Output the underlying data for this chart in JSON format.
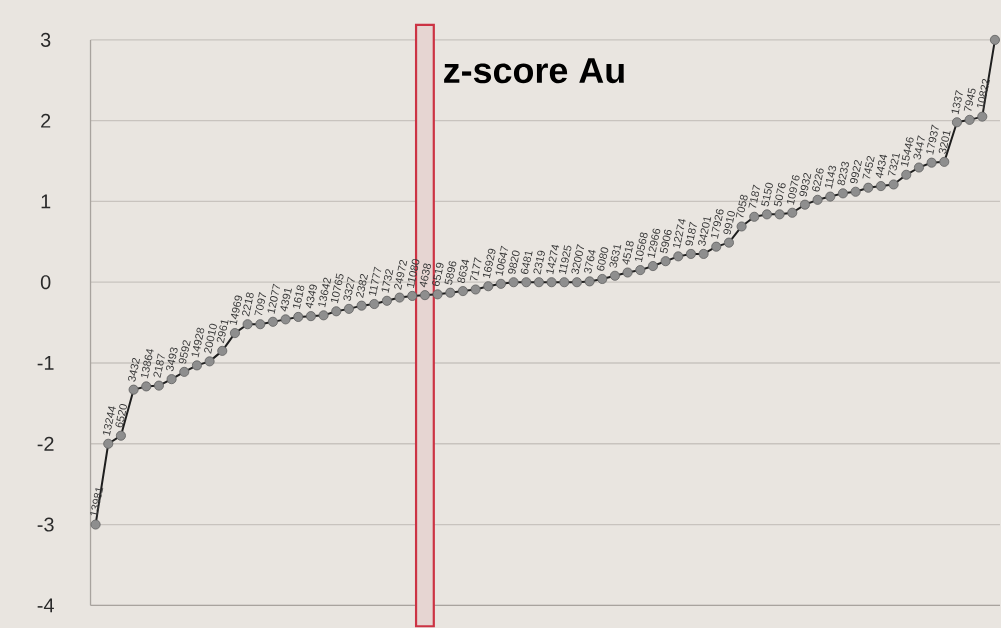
{
  "chart_data": {
    "type": "line",
    "title": "z-score Au",
    "categories": [
      "13981",
      "13244",
      "6520",
      "3432",
      "13864",
      "2187",
      "3493",
      "9592",
      "14928",
      "20010",
      "2961",
      "14969",
      "2218",
      "7097",
      "12077",
      "4391",
      "1618",
      "4349",
      "13642",
      "10765",
      "3327",
      "2382",
      "11777",
      "1732",
      "24972",
      "11080",
      "4638",
      "6519",
      "5896",
      "8634",
      "7177",
      "16929",
      "10647",
      "9820",
      "6481",
      "2319",
      "14274",
      "11925",
      "32007",
      "3764",
      "6080",
      "3631",
      "4518",
      "10568",
      "12966",
      "5906",
      "12274",
      "9187",
      "34201",
      "17926",
      "9910",
      "7058",
      "7187",
      "5150",
      "5076",
      "10976",
      "9932",
      "6226",
      "1143",
      "8233",
      "9922",
      "7452",
      "4434",
      "7321",
      "15446",
      "3447",
      "17937",
      "3201",
      "1337",
      "7945",
      "10822",
      null
    ],
    "values": [
      -3.0,
      -2.0,
      -1.9,
      -1.33,
      -1.29,
      -1.28,
      -1.2,
      -1.11,
      -1.03,
      -0.98,
      -0.85,
      -0.63,
      -0.52,
      -0.52,
      -0.49,
      -0.46,
      -0.43,
      -0.42,
      -0.41,
      -0.36,
      -0.33,
      -0.29,
      -0.27,
      -0.23,
      -0.19,
      -0.17,
      -0.16,
      -0.15,
      -0.13,
      -0.11,
      -0.09,
      -0.05,
      -0.02,
      0.0,
      0.0,
      0.0,
      0.0,
      0.0,
      0.0,
      0.01,
      0.04,
      0.08,
      0.12,
      0.15,
      0.2,
      0.26,
      0.32,
      0.35,
      0.35,
      0.44,
      0.49,
      0.69,
      0.81,
      0.84,
      0.84,
      0.86,
      0.96,
      1.02,
      1.06,
      1.1,
      1.12,
      1.17,
      1.19,
      1.21,
      1.33,
      1.42,
      1.48,
      1.49,
      1.98,
      2.01,
      2.05,
      3.0
    ],
    "color": "#1e1e1e",
    "marker": "circle",
    "line_style": "solid",
    "grid": "y",
    "ylim": [
      -4,
      3
    ],
    "yticks": [
      -4,
      -3,
      -2,
      -1,
      0,
      1,
      2,
      3
    ],
    "bands": [
      {
        "axis": "x",
        "from": "4638",
        "to": "4638",
        "color": "#cc3344"
      }
    ]
  }
}
